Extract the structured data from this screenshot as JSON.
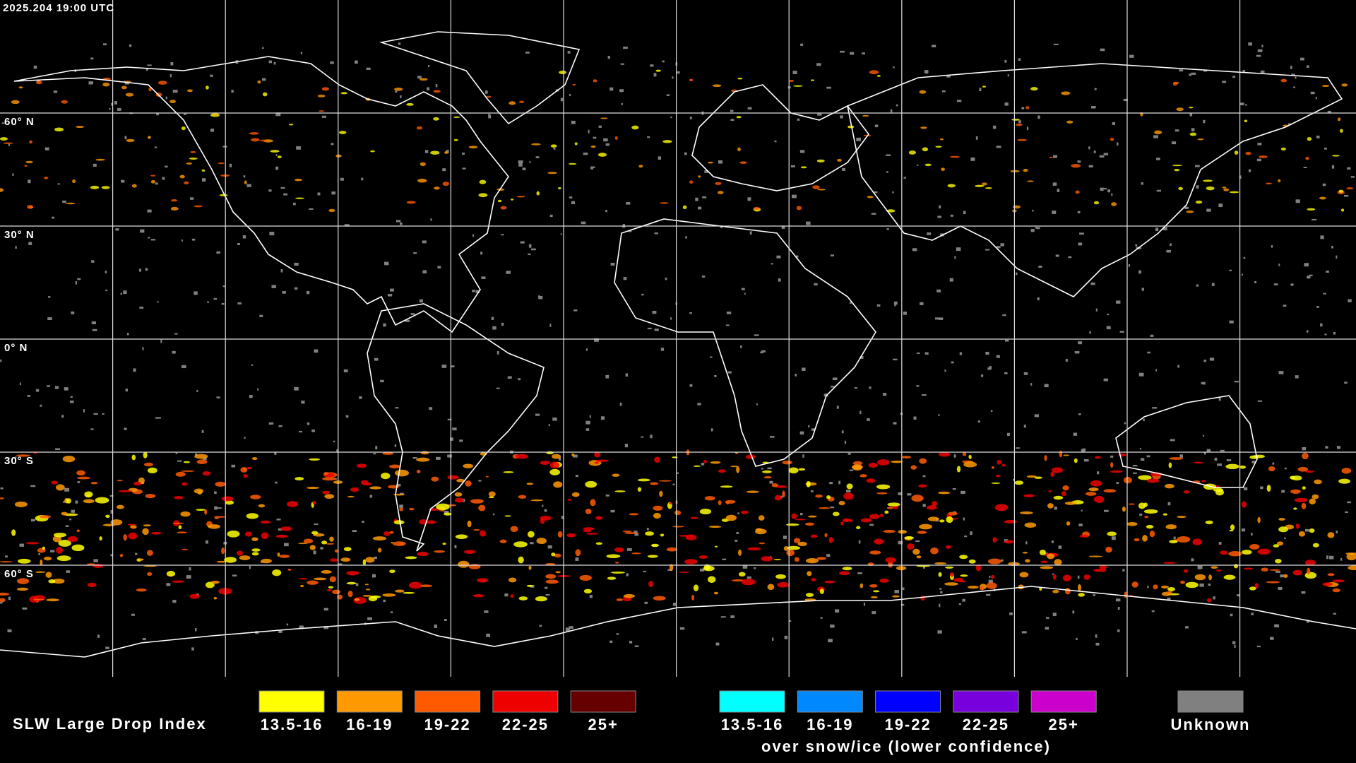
{
  "header": {
    "timestamp": "2025.204 19:00 UTC"
  },
  "map": {
    "latitude_labels": [
      "60° N",
      "30° N",
      "0° N",
      "30° S",
      "60° S"
    ]
  },
  "legend": {
    "title": "SLW Large Drop Index",
    "items": [
      {
        "label": "13.5-16",
        "color": "#ffff00"
      },
      {
        "label": "16-19",
        "color": "#ff9900"
      },
      {
        "label": "19-22",
        "color": "#ff5a00"
      },
      {
        "label": "22-25",
        "color": "#ee0000"
      },
      {
        "label": "25+",
        "color": "#660000"
      }
    ],
    "snow_items": [
      {
        "label": "13.5-16",
        "color": "#00ffff"
      },
      {
        "label": "16-19",
        "color": "#0088ff"
      },
      {
        "label": "19-22",
        "color": "#0000ff"
      },
      {
        "label": "22-25",
        "color": "#7700dd"
      },
      {
        "label": "25+",
        "color": "#cc00cc"
      }
    ],
    "snow_caption": "over snow/ice (lower confidence)",
    "unknown": {
      "label": "Unknown",
      "color": "#808080"
    }
  }
}
